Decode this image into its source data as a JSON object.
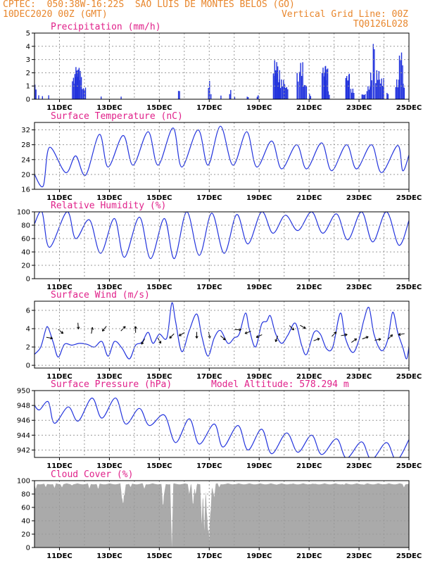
{
  "header": {
    "line1_left": "CPTEC:  050:38W-16:22S  SAO LUIS DE MONTES BELOS (GO)",
    "line2_left": "10DEC2020 00Z (GMT)",
    "line2_right": "Vertical Grid Line: 00Z",
    "line3_right": "TQ0126L028"
  },
  "colors": {
    "header": "#e8862c",
    "title": "#e0218a",
    "series": "#2233dd",
    "cloud": "#aaaaaa"
  },
  "chart_data": [
    {
      "type": "bar",
      "title": "Precipitation (mm/h)",
      "ylim": [
        0,
        5
      ],
      "yticks": [
        0,
        1,
        2,
        3,
        4,
        5
      ],
      "xticklabels": [
        "11DEC",
        "13DEC",
        "15DEC",
        "17DEC",
        "19DEC",
        "21DEC",
        "23DEC",
        "25DEC"
      ],
      "xticks": [
        1,
        3,
        5,
        7,
        9,
        11,
        13,
        15
      ],
      "xlim": [
        0,
        15
      ],
      "bursts": [
        [
          0.0,
          0.1,
          1.1
        ],
        [
          0.15,
          0.2,
          0.4
        ],
        [
          0.3,
          0.35,
          0.3
        ],
        [
          0.55,
          0.6,
          0.3
        ],
        [
          1.5,
          1.75,
          1.7
        ],
        [
          1.6,
          1.8,
          2.6
        ],
        [
          1.65,
          1.9,
          2.2
        ],
        [
          1.9,
          2.05,
          0.9
        ],
        [
          2.65,
          2.7,
          0.3
        ],
        [
          3.45,
          3.5,
          0.2
        ],
        [
          5.75,
          5.85,
          0.7
        ],
        [
          6.95,
          7.05,
          1.4
        ],
        [
          7.05,
          7.1,
          0.4
        ],
        [
          7.45,
          7.5,
          0.3
        ],
        [
          7.8,
          7.9,
          0.7
        ],
        [
          8.0,
          8.05,
          0.2
        ],
        [
          8.5,
          8.6,
          0.2
        ],
        [
          8.9,
          9.0,
          0.3
        ],
        [
          9.55,
          9.85,
          2.2
        ],
        [
          9.6,
          9.75,
          3.0
        ],
        [
          9.75,
          10.05,
          1.5
        ],
        [
          10.0,
          10.15,
          1.0
        ],
        [
          10.5,
          10.6,
          2.0
        ],
        [
          10.6,
          10.75,
          2.8
        ],
        [
          10.75,
          10.9,
          1.2
        ],
        [
          11.0,
          11.1,
          0.4
        ],
        [
          11.5,
          11.7,
          2.5
        ],
        [
          11.6,
          11.75,
          2.7
        ],
        [
          11.75,
          11.85,
          0.6
        ],
        [
          12.45,
          12.6,
          1.9
        ],
        [
          12.55,
          12.65,
          2.0
        ],
        [
          12.65,
          12.8,
          0.8
        ],
        [
          13.1,
          13.25,
          0.4
        ],
        [
          13.3,
          13.45,
          1.0
        ],
        [
          13.45,
          13.55,
          2.1
        ],
        [
          13.55,
          13.65,
          4.5
        ],
        [
          13.65,
          13.8,
          2.2
        ],
        [
          13.8,
          14.0,
          1.6
        ],
        [
          14.1,
          14.2,
          0.5
        ],
        [
          14.45,
          14.6,
          1.5
        ],
        [
          14.6,
          14.75,
          3.7
        ],
        [
          14.75,
          14.85,
          1.2
        ]
      ]
    },
    {
      "type": "line",
      "title": "Surface Temperature (nC)",
      "ylim": [
        16,
        34
      ],
      "yticks": [
        16,
        20,
        24,
        28,
        32
      ],
      "xticklabels": [
        "11DEC",
        "13DEC",
        "15DEC",
        "17DEC",
        "19DEC",
        "21DEC",
        "23DEC",
        "25DEC"
      ],
      "xticks": [
        1,
        3,
        5,
        7,
        9,
        11,
        13,
        15
      ],
      "xlim": [
        0,
        15
      ],
      "mins": [
        [
          0.35,
          16.9
        ],
        [
          1.25,
          20.5
        ],
        [
          2.05,
          19.8
        ],
        [
          2.95,
          22.0
        ],
        [
          3.95,
          22.5
        ],
        [
          4.95,
          22.5
        ],
        [
          5.9,
          22.0
        ],
        [
          6.95,
          22.5
        ],
        [
          7.95,
          22.5
        ],
        [
          8.9,
          22.0
        ],
        [
          9.9,
          21.5
        ],
        [
          10.9,
          21.5
        ],
        [
          11.9,
          21.0
        ],
        [
          12.9,
          21.5
        ],
        [
          13.9,
          20.5
        ],
        [
          14.75,
          21.0
        ]
      ],
      "maxs": [
        [
          0.0,
          20.0
        ],
        [
          0.6,
          27.3
        ],
        [
          1.65,
          25.0
        ],
        [
          2.6,
          30.8
        ],
        [
          3.55,
          30.5
        ],
        [
          4.55,
          31.5
        ],
        [
          5.55,
          32.5
        ],
        [
          6.55,
          32.0
        ],
        [
          7.45,
          33.0
        ],
        [
          8.5,
          31.5
        ],
        [
          9.5,
          29.0
        ],
        [
          10.5,
          28.0
        ],
        [
          11.5,
          28.5
        ],
        [
          12.5,
          28.0
        ],
        [
          13.5,
          28.0
        ],
        [
          14.55,
          27.8
        ]
      ],
      "end": [
        15.0,
        25.2
      ]
    },
    {
      "type": "line",
      "title": "Relative Humidity (%)",
      "ylim": [
        0,
        100
      ],
      "yticks": [
        0,
        20,
        40,
        60,
        80,
        100
      ],
      "xticklabels": [
        "11DEC",
        "13DEC",
        "15DEC",
        "17DEC",
        "19DEC",
        "21DEC",
        "23DEC",
        "25DEC"
      ],
      "xticks": [
        1,
        3,
        5,
        7,
        9,
        11,
        13,
        15
      ],
      "xlim": [
        0,
        15
      ],
      "mins": [
        [
          0.6,
          47.0
        ],
        [
          1.65,
          60.0
        ],
        [
          2.65,
          38.0
        ],
        [
          3.6,
          32.0
        ],
        [
          4.65,
          30.0
        ],
        [
          5.6,
          30.0
        ],
        [
          6.6,
          35.0
        ],
        [
          7.6,
          38.0
        ],
        [
          8.55,
          52.0
        ],
        [
          9.55,
          68.0
        ],
        [
          10.55,
          72.0
        ],
        [
          11.55,
          68.0
        ],
        [
          12.55,
          58.0
        ],
        [
          13.55,
          55.0
        ],
        [
          14.6,
          50.0
        ]
      ],
      "maxs": [
        [
          0.0,
          82.0
        ],
        [
          0.3,
          100.0
        ],
        [
          1.3,
          100.0
        ],
        [
          2.2,
          88.0
        ],
        [
          3.2,
          90.0
        ],
        [
          4.2,
          92.0
        ],
        [
          5.2,
          90.0
        ],
        [
          6.1,
          100.0
        ],
        [
          7.1,
          98.0
        ],
        [
          8.1,
          96.0
        ],
        [
          9.1,
          100.0
        ],
        [
          10.05,
          95.0
        ],
        [
          11.1,
          100.0
        ],
        [
          12.1,
          97.0
        ],
        [
          13.1,
          100.0
        ],
        [
          14.1,
          100.0
        ]
      ],
      "end": [
        15.0,
        87.0
      ]
    },
    {
      "type": "line",
      "title": "Surface Wind (m/s)",
      "ylim": [
        -0.3,
        7
      ],
      "yticks": [
        0,
        2,
        4,
        6
      ],
      "xticklabels": [
        "11DEC",
        "13DEC",
        "15DEC",
        "17DEC",
        "19DEC",
        "21DEC",
        "23DEC",
        "25DEC"
      ],
      "xticks": [
        1,
        3,
        5,
        7,
        9,
        11,
        13,
        15
      ],
      "xlim": [
        0,
        15
      ],
      "series": [
        [
          0.0,
          1.2
        ],
        [
          0.25,
          2.0
        ],
        [
          0.45,
          3.9
        ],
        [
          0.55,
          4.1
        ],
        [
          0.75,
          2.5
        ],
        [
          0.95,
          0.9
        ],
        [
          1.2,
          2.3
        ],
        [
          1.5,
          2.2
        ],
        [
          1.8,
          2.4
        ],
        [
          2.1,
          2.3
        ],
        [
          2.4,
          2.0
        ],
        [
          2.7,
          2.6
        ],
        [
          2.95,
          1.0
        ],
        [
          3.2,
          2.6
        ],
        [
          3.5,
          1.9
        ],
        [
          3.8,
          0.7
        ],
        [
          4.05,
          2.2
        ],
        [
          4.3,
          2.5
        ],
        [
          4.55,
          3.6
        ],
        [
          4.75,
          2.4
        ],
        [
          5.0,
          3.4
        ],
        [
          5.3,
          3.0
        ],
        [
          5.5,
          6.8
        ],
        [
          5.65,
          4.8
        ],
        [
          5.9,
          1.5
        ],
        [
          6.2,
          3.8
        ],
        [
          6.5,
          5.6
        ],
        [
          6.7,
          3.2
        ],
        [
          6.95,
          1.0
        ],
        [
          7.2,
          3.0
        ],
        [
          7.45,
          3.8
        ],
        [
          7.75,
          2.4
        ],
        [
          8.0,
          3.0
        ],
        [
          8.2,
          3.4
        ],
        [
          8.45,
          5.7
        ],
        [
          8.6,
          4.0
        ],
        [
          8.85,
          2.0
        ],
        [
          9.1,
          4.5
        ],
        [
          9.3,
          4.8
        ],
        [
          9.45,
          5.4
        ],
        [
          9.65,
          3.5
        ],
        [
          9.9,
          2.4
        ],
        [
          10.15,
          3.3
        ],
        [
          10.45,
          4.6
        ],
        [
          10.7,
          2.2
        ],
        [
          10.9,
          1.2
        ],
        [
          11.2,
          3.6
        ],
        [
          11.45,
          3.4
        ],
        [
          11.7,
          1.8
        ],
        [
          11.95,
          2.0
        ],
        [
          12.25,
          5.7
        ],
        [
          12.45,
          3.0
        ],
        [
          12.75,
          1.4
        ],
        [
          13.0,
          2.8
        ],
        [
          13.2,
          5.0
        ],
        [
          13.4,
          6.3
        ],
        [
          13.6,
          3.4
        ],
        [
          13.9,
          1.6
        ],
        [
          14.15,
          2.8
        ],
        [
          14.35,
          5.8
        ],
        [
          14.55,
          3.6
        ],
        [
          14.75,
          2.0
        ],
        [
          14.9,
          0.7
        ],
        [
          15.0,
          2.0
        ]
      ],
      "arrows": [
        [
          0.6,
          3.0,
          100
        ],
        [
          1.05,
          3.7,
          130
        ],
        [
          1.75,
          4.3,
          175
        ],
        [
          2.3,
          3.8,
          10
        ],
        [
          2.8,
          4.0,
          220
        ],
        [
          3.55,
          4.0,
          45
        ],
        [
          4.05,
          3.9,
          0
        ],
        [
          4.35,
          2.6,
          210
        ],
        [
          5.0,
          2.7,
          150
        ],
        [
          5.5,
          3.2,
          225
        ],
        [
          5.9,
          3.4,
          240
        ],
        [
          6.5,
          3.3,
          180
        ],
        [
          7.0,
          3.3,
          170
        ],
        [
          7.55,
          3.0,
          130
        ],
        [
          8.15,
          3.9,
          90
        ],
        [
          8.55,
          3.6,
          250
        ],
        [
          9.0,
          3.2,
          245
        ],
        [
          9.7,
          2.9,
          200
        ],
        [
          10.3,
          4.1,
          135
        ],
        [
          10.75,
          4.2,
          120
        ],
        [
          11.3,
          2.8,
          70
        ],
        [
          12.0,
          3.4,
          45
        ],
        [
          12.4,
          3.3,
          80
        ],
        [
          12.8,
          2.7,
          55
        ],
        [
          13.25,
          3.0,
          70
        ],
        [
          13.75,
          2.8,
          80
        ],
        [
          14.25,
          3.1,
          45
        ],
        [
          14.7,
          3.4,
          260
        ]
      ]
    },
    {
      "type": "line",
      "title": "Surface Pressure (hPa)",
      "annotation": "Model Altitude: 578.294 m",
      "ylim": [
        941,
        950
      ],
      "yticks": [
        942,
        944,
        946,
        948,
        950
      ],
      "xticklabels": [
        "11DEC",
        "13DEC",
        "15DEC",
        "17DEC",
        "19DEC",
        "21DEC",
        "23DEC",
        "25DEC"
      ],
      "xticks": [
        1,
        3,
        5,
        7,
        9,
        11,
        13,
        15
      ],
      "xlim": [
        0,
        15
      ],
      "mins": [
        [
          0.2,
          947.4
        ],
        [
          0.8,
          945.6
        ],
        [
          1.75,
          945.9
        ],
        [
          2.7,
          946.3
        ],
        [
          3.65,
          945.5
        ],
        [
          4.6,
          945.3
        ],
        [
          5.65,
          943.0
        ],
        [
          6.6,
          942.8
        ],
        [
          7.55,
          942.4
        ],
        [
          8.55,
          942.0
        ],
        [
          9.5,
          941.5
        ],
        [
          10.55,
          941.7
        ],
        [
          11.5,
          941.4
        ],
        [
          12.5,
          940.9
        ],
        [
          13.5,
          940.7
        ],
        [
          14.5,
          940.6
        ]
      ],
      "maxs": [
        [
          0.0,
          948.0
        ],
        [
          0.55,
          948.5
        ],
        [
          1.35,
          947.8
        ],
        [
          2.3,
          949.0
        ],
        [
          3.25,
          949.0
        ],
        [
          4.2,
          947.6
        ],
        [
          5.2,
          946.7
        ],
        [
          6.2,
          946.2
        ],
        [
          7.2,
          945.5
        ],
        [
          8.15,
          945.3
        ],
        [
          9.1,
          944.8
        ],
        [
          10.1,
          944.3
        ],
        [
          11.1,
          944.0
        ],
        [
          12.1,
          943.5
        ],
        [
          13.1,
          943.1
        ],
        [
          14.1,
          943.0
        ]
      ],
      "end": [
        15.0,
        943.4
      ]
    },
    {
      "type": "area",
      "title": "Cloud Cover (%)",
      "ylim": [
        0,
        100
      ],
      "yticks": [
        0,
        20,
        40,
        60,
        80,
        100
      ],
      "xticklabels": [
        "11DEC",
        "13DEC",
        "15DEC",
        "17DEC",
        "19DEC",
        "21DEC",
        "23DEC",
        "25DEC"
      ],
      "xticks": [
        1,
        3,
        5,
        7,
        9,
        11,
        13,
        15
      ],
      "xlim": [
        0,
        15
      ],
      "base": 96,
      "dips": [
        [
          0.05,
          87.0
        ],
        [
          0.1,
          97.0
        ],
        [
          0.45,
          90.0
        ],
        [
          0.8,
          89.0
        ],
        [
          1.1,
          90.0
        ],
        [
          1.5,
          93.0
        ],
        [
          2.2,
          88.0
        ],
        [
          2.55,
          87.0
        ],
        [
          3.5,
          77.0
        ],
        [
          3.55,
          62.0
        ],
        [
          3.6,
          78.0
        ],
        [
          3.85,
          90.0
        ],
        [
          4.4,
          88.0
        ],
        [
          5.15,
          58.0
        ],
        [
          5.2,
          82.0
        ],
        [
          5.5,
          0.0
        ],
        [
          5.53,
          95.0
        ],
        [
          6.2,
          80.0
        ],
        [
          6.35,
          60.0
        ],
        [
          6.45,
          78.0
        ],
        [
          6.7,
          35.0
        ],
        [
          6.8,
          25.0
        ],
        [
          6.9,
          60.0
        ],
        [
          6.95,
          20.0
        ],
        [
          7.0,
          10.0
        ],
        [
          7.05,
          48.0
        ],
        [
          7.15,
          85.0
        ],
        [
          7.2,
          75.0
        ],
        [
          7.4,
          90.0
        ],
        [
          9.7,
          94.0
        ],
        [
          10.3,
          95.0
        ],
        [
          11.2,
          95.0
        ],
        [
          12.4,
          94.0
        ],
        [
          13.2,
          94.0
        ],
        [
          14.8,
          90.0
        ]
      ]
    }
  ]
}
